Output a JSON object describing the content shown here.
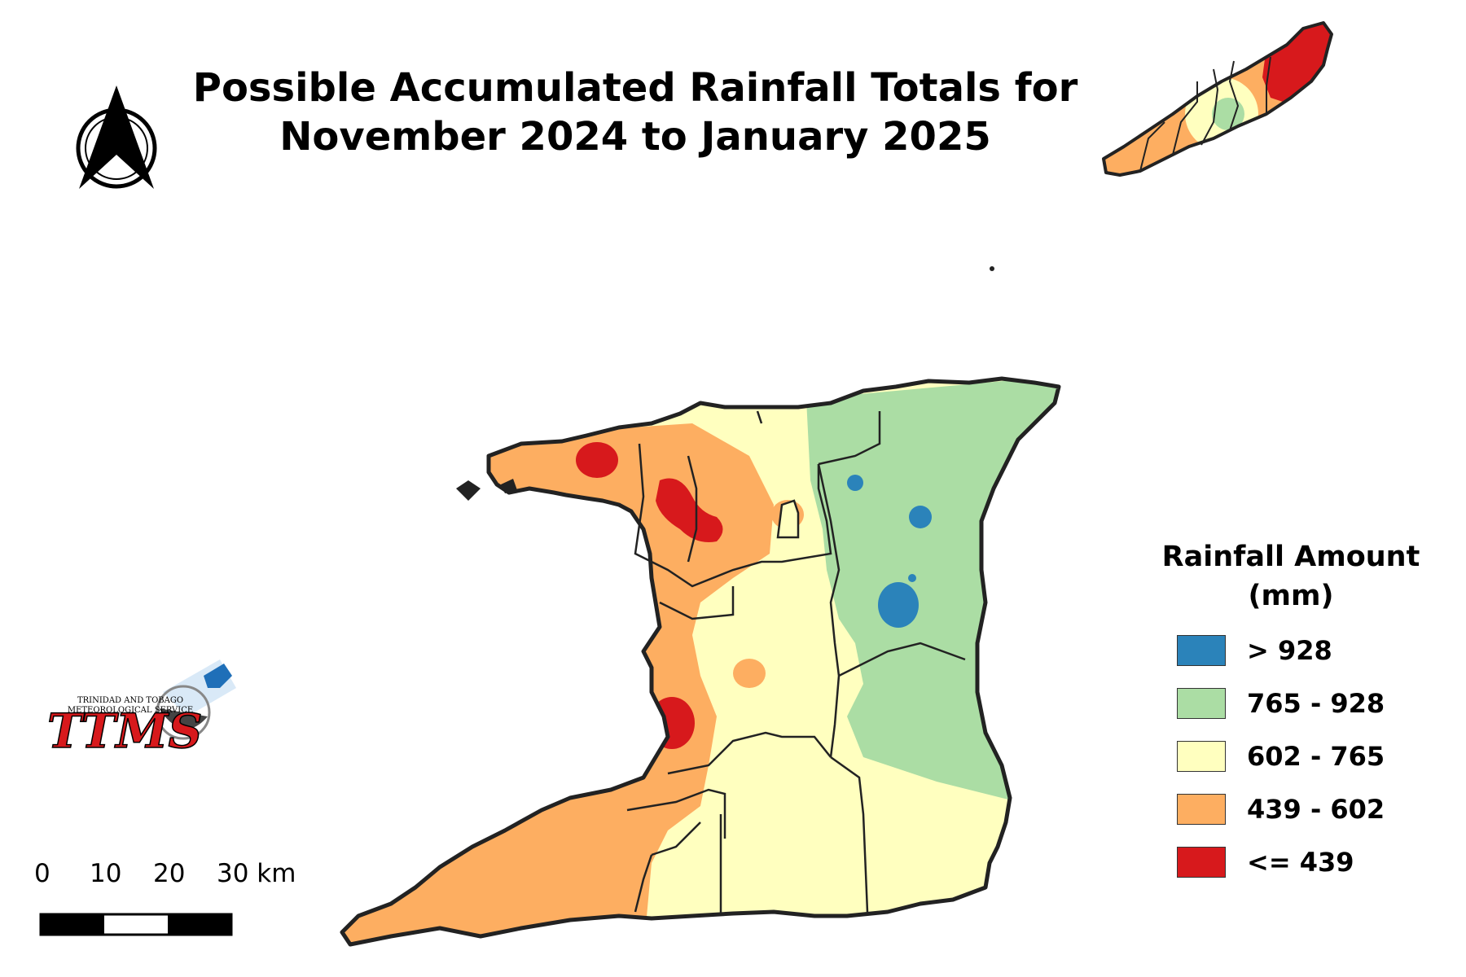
{
  "title": {
    "line1": "Possible Accumulated Rainfall Totals for",
    "line2": "November 2024 to January 2025"
  },
  "legend": {
    "title_line1": "Rainfall Amount",
    "title_line2": "(mm)",
    "items": [
      {
        "label": "> 928",
        "color": "#2b83ba"
      },
      {
        "label": "765 - 928",
        "color": "#abdda4"
      },
      {
        "label": "602 - 765",
        "color": "#ffffbf"
      },
      {
        "label": "439 - 602",
        "color": "#fdae61"
      },
      {
        "label": "<= 439",
        "color": "#d7191c"
      }
    ]
  },
  "scale_bar": {
    "ticks": [
      "0",
      "10",
      "20",
      "30 km"
    ]
  },
  "logo": {
    "name": "TTMS",
    "line1": "TRINIDAD AND TOBAGO",
    "line2": "METEOROLOGICAL SERVICE"
  },
  "north_arrow": "north-arrow-icon"
}
